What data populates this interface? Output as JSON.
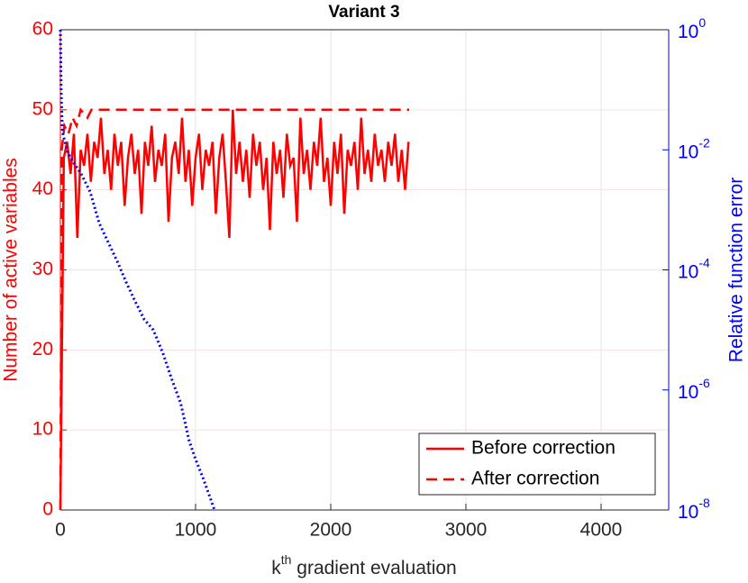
{
  "chart_data": {
    "type": "line",
    "title": "Variant 3",
    "xlabel": [
      "k",
      "th",
      " gradient evaluation"
    ],
    "ylabel": "Number of active variables",
    "y2label": "Relative function error",
    "xlim": [
      0,
      4500
    ],
    "xticks": [
      0,
      1000,
      2000,
      3000,
      4000
    ],
    "ylim": [
      0,
      60
    ],
    "yticks": [
      0,
      10,
      20,
      30,
      40,
      50,
      60
    ],
    "y2lim": [
      1e-08,
      1
    ],
    "y2scale": "log",
    "y2ticks": [
      {
        "value": 1e-08,
        "label": "10",
        "exponent": "-8"
      },
      {
        "value": 1e-06,
        "label": "10",
        "exponent": "-6"
      },
      {
        "value": 0.0001,
        "label": "10",
        "exponent": "-4"
      },
      {
        "value": 0.01,
        "label": "10",
        "exponent": "-2"
      },
      {
        "value": 1,
        "label": "10",
        "exponent": "0"
      }
    ],
    "ycolor": "#ff0000",
    "y2color": "#0000ff",
    "grid": true,
    "legend": "lower right",
    "series": [
      {
        "name": "Before correction",
        "color": "#ff0000",
        "dash": "solid",
        "x": [
          0,
          25,
          50,
          75,
          100,
          125,
          150,
          175,
          200,
          225,
          250,
          275,
          300,
          325,
          350,
          375,
          400,
          425,
          450,
          475,
          500,
          525,
          550,
          575,
          600,
          625,
          650,
          675,
          700,
          725,
          750,
          775,
          800,
          825,
          850,
          875,
          900,
          925,
          950,
          975,
          1000,
          1025,
          1050,
          1075,
          1100,
          1125,
          1150,
          1175,
          1200,
          1225,
          1250,
          1275,
          1300,
          1325,
          1350,
          1375,
          1400,
          1425,
          1450,
          1475,
          1500,
          1525,
          1550,
          1575,
          1600,
          1625,
          1650,
          1675,
          1700,
          1725,
          1750,
          1775,
          1800,
          1825,
          1850,
          1875,
          1900,
          1925,
          1950,
          1975,
          2000,
          2025,
          2050,
          2075,
          2100,
          2125,
          2150,
          2175,
          2200,
          2225,
          2250,
          2275,
          2300,
          2325,
          2350,
          2375,
          2400,
          2425,
          2450,
          2475,
          2500,
          2525,
          2550,
          2575
        ],
        "values": [
          0,
          44,
          46,
          42,
          47,
          34,
          45,
          43,
          47,
          41,
          46,
          44,
          49,
          42,
          45,
          40,
          47,
          43,
          46,
          38,
          44,
          47,
          42,
          45,
          37,
          46,
          43,
          48,
          41,
          45,
          43,
          47,
          36,
          44,
          46,
          42,
          49,
          41,
          45,
          38,
          44,
          47,
          40,
          45,
          43,
          46,
          37,
          44,
          47,
          41,
          34,
          50,
          42,
          46,
          41,
          45,
          39,
          47,
          43,
          46,
          40,
          44,
          35,
          46,
          42,
          45,
          39,
          47,
          43,
          44,
          36,
          49,
          42,
          45,
          40,
          46,
          43,
          49,
          41,
          44,
          38,
          46,
          42,
          47,
          37,
          45,
          43,
          46,
          40,
          49,
          42,
          45,
          41,
          47,
          43,
          45,
          41,
          46,
          43,
          47,
          41,
          45,
          40,
          46
        ]
      },
      {
        "name": "After correction",
        "color": "#ff0000",
        "dash": "dashed",
        "x": [
          0,
          10,
          30,
          60,
          90,
          120,
          150,
          200,
          230,
          300,
          2580
        ],
        "values": [
          0,
          45,
          48,
          47,
          49,
          48,
          50,
          49,
          50,
          50,
          50
        ]
      },
      {
        "color": "#0000ff",
        "dash": "dotted",
        "axis": "y2",
        "x": [
          0,
          5,
          15,
          53,
          100,
          153,
          220,
          287,
          350,
          420,
          490,
          553,
          620,
          687,
          760,
          820,
          890,
          953,
          1000,
          1053,
          1100,
          1140
        ],
        "values": [
          1,
          0.1,
          0.02,
          0.009,
          0.006,
          0.004,
          0.002,
          0.0006,
          0.0003,
          0.00014,
          6e-05,
          3e-05,
          1.5e-05,
          1e-05,
          4e-06,
          1.6e-06,
          6e-07,
          1.4e-07,
          7e-08,
          3.5e-08,
          1.8e-08,
          1e-08
        ]
      }
    ]
  }
}
